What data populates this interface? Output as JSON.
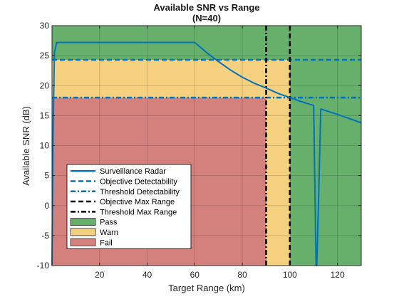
{
  "chart_data": {
    "type": "line",
    "title": "Available SNR vs Range",
    "subtitle": "(N=40)",
    "xlabel": "Target Range (km)",
    "ylabel": "Available SNR (dB)",
    "xlim": [
      0,
      130
    ],
    "ylim": [
      -10,
      30
    ],
    "xticks": [
      20,
      40,
      60,
      80,
      100,
      120
    ],
    "yticks": [
      -10,
      -5,
      0,
      5,
      10,
      15,
      20,
      25,
      30
    ],
    "grid": true,
    "legend_position": "bottom-left",
    "regions": [
      {
        "name": "Pass",
        "color": "#66b06c"
      },
      {
        "name": "Warn",
        "color": "#f5d07e"
      },
      {
        "name": "Fail",
        "color": "#d4817e"
      }
    ],
    "series": [
      {
        "name": "Surveillance Radar",
        "style": "solid",
        "color": "#0072bd",
        "x": [
          0,
          0.4,
          1,
          2,
          60,
          65,
          70,
          75,
          80,
          85,
          90,
          95,
          100,
          105,
          110,
          111,
          111.3,
          112,
          113,
          120,
          125,
          130
        ],
        "y": [
          -10,
          10,
          25.5,
          27.2,
          27.2,
          25.5,
          24.0,
          22.6,
          21.4,
          20.4,
          19.6,
          18.7,
          18.0,
          17.3,
          16.7,
          -10,
          -10,
          0,
          16.1,
          15.2,
          14.5,
          13.8
        ]
      },
      {
        "name": "Objective Detectability",
        "style": "dashed",
        "color": "#0072bd",
        "x": [
          0,
          130
        ],
        "y": [
          24.3,
          24.3
        ]
      },
      {
        "name": "Threshold Detectability",
        "style": "dashdot",
        "color": "#0072bd",
        "x": [
          0,
          130
        ],
        "y": [
          18.0,
          18.0
        ]
      },
      {
        "name": "Objective Max Range",
        "style": "dashed",
        "color": "#000000",
        "x": [
          100,
          100
        ],
        "y": [
          -10,
          30
        ]
      },
      {
        "name": "Threshold Max Range",
        "style": "dashdot",
        "color": "#000000",
        "x": [
          90,
          90
        ],
        "y": [
          -10,
          30
        ]
      }
    ]
  }
}
